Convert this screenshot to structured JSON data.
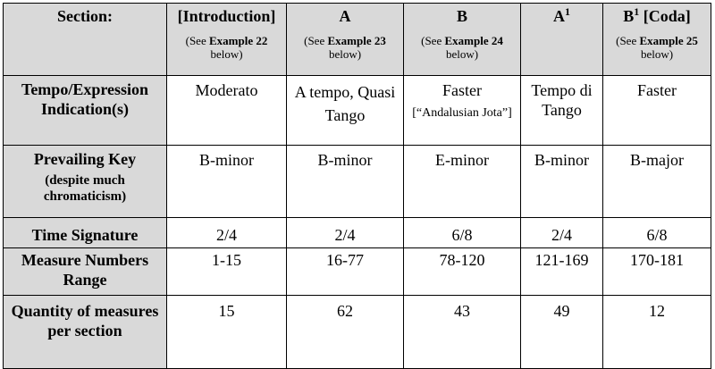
{
  "table": {
    "header": {
      "label": "Section:",
      "sections": [
        {
          "title": "[Introduction]",
          "sup": "",
          "title_suffix": "",
          "see_prefix": "(See ",
          "see_bold": "Example 22",
          "see_suffix": " below)"
        },
        {
          "title": "A",
          "sup": "",
          "title_suffix": "",
          "see_prefix": "(See ",
          "see_bold": "Example 23",
          "see_suffix": " below)"
        },
        {
          "title": "B",
          "sup": "",
          "title_suffix": "",
          "see_prefix": "(See ",
          "see_bold": "Example 24",
          "see_suffix": " below)"
        },
        {
          "title": "A",
          "sup": "1",
          "title_suffix": "",
          "see_prefix": "",
          "see_bold": "",
          "see_suffix": ""
        },
        {
          "title": "B",
          "sup": "1",
          "title_suffix": " [Coda]",
          "see_prefix": "(See ",
          "see_bold": "Example 25",
          "see_suffix": " below)"
        }
      ]
    },
    "rows": {
      "tempo": {
        "label": "Tempo/Expression Indication(s)",
        "values": [
          "Moderato",
          "A tempo, Quasi Tango",
          "Faster",
          "Tempo di Tango",
          "Faster"
        ],
        "note_b": "[“Andalusian Jota”]"
      },
      "key": {
        "label": "Prevailing Key",
        "sublabel": "(despite much chromaticism)",
        "values": [
          "B-minor",
          "B-minor",
          "E-minor",
          "B-minor",
          "B-major"
        ]
      },
      "time": {
        "label": "Time Signature",
        "values": [
          "2/4",
          "2/4",
          "6/8",
          "2/4",
          "6/8"
        ]
      },
      "measures": {
        "label": "Measure Numbers Range",
        "values": [
          "1-15",
          "16-77",
          "78-120",
          "121-169",
          "170-181"
        ]
      },
      "quantity": {
        "label": "Quantity of measures per section",
        "values": [
          "15",
          "62",
          "43",
          "49",
          "12"
        ]
      }
    }
  }
}
